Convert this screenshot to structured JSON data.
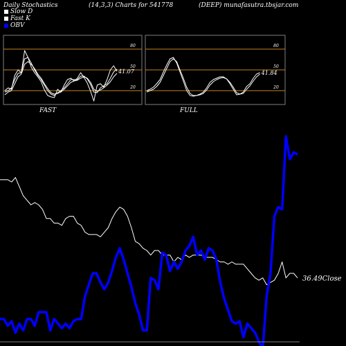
{
  "header": {
    "left": "Daily Stochastics",
    "middle": "(14,3,3) Charts for 541778",
    "right": "(DEEP) munafasutra.tbsjar.com"
  },
  "legend": [
    {
      "label": "Slow  D",
      "color": "#ffffff"
    },
    {
      "label": "Fast K",
      "color": "#ffffff"
    },
    {
      "label": "OBV",
      "color": "#0000ff"
    }
  ],
  "colors": {
    "background": "#000000",
    "panel_border": "#808080",
    "ref_lines": "#c8821e",
    "stoch_lines": "#ffffff",
    "obv": "#0000ff",
    "close": "#ffffff"
  },
  "chart_data": [
    {
      "type": "line",
      "title": "FAST",
      "ylim": [
        0,
        100
      ],
      "ticks": [
        "80",
        "50",
        "20"
      ],
      "ref_lines": [
        80,
        50,
        20
      ],
      "last_label": "41.07",
      "series": [
        {
          "values": [
            20,
            24,
            22,
            42,
            50,
            46,
            78,
            68,
            54,
            46,
            40,
            33,
            21,
            13,
            11,
            10,
            22,
            18,
            28,
            36,
            38,
            34,
            38,
            46,
            39,
            31,
            19,
            5,
            28,
            30,
            25,
            36,
            50,
            56,
            48
          ]
        },
        {
          "values": [
            18,
            20,
            24,
            36,
            45,
            46,
            66,
            68,
            60,
            50,
            42,
            36,
            28,
            20,
            15,
            13,
            17,
            20,
            24,
            30,
            36,
            36,
            36,
            41,
            41,
            37,
            29,
            18,
            17,
            24,
            27,
            30,
            38,
            47,
            51
          ]
        },
        {
          "values": [
            14,
            18,
            20,
            30,
            40,
            44,
            58,
            62,
            58,
            52,
            44,
            38,
            30,
            23,
            17,
            15,
            16,
            18,
            22,
            27,
            32,
            34,
            35,
            38,
            40,
            38,
            32,
            22,
            19,
            21,
            24,
            28,
            33,
            40,
            45
          ]
        }
      ]
    },
    {
      "type": "line",
      "title": "FULL",
      "ylim": [
        0,
        100
      ],
      "ticks": [
        "80",
        "50",
        "20"
      ],
      "ref_lines": [
        80,
        50,
        20
      ],
      "last_label": "41.84",
      "series": [
        {
          "values": [
            20,
            22,
            25,
            30,
            36,
            47,
            57,
            66,
            68,
            60,
            47,
            34,
            20,
            13,
            12,
            13,
            15,
            18,
            24,
            32,
            36,
            38,
            40,
            40,
            37,
            30,
            22,
            14,
            15,
            18,
            26,
            30,
            38,
            44,
            46
          ]
        },
        {
          "values": [
            18,
            20,
            22,
            26,
            32,
            42,
            52,
            62,
            66,
            62,
            50,
            38,
            25,
            16,
            13,
            13,
            14,
            16,
            21,
            28,
            33,
            36,
            38,
            39,
            37,
            32,
            25,
            17,
            15,
            16,
            22,
            27,
            34,
            40,
            44
          ]
        }
      ]
    },
    {
      "type": "line",
      "close_label": "36.49Close",
      "series": [
        {
          "name": "OBV",
          "values": [
            10,
            10,
            7,
            9,
            4,
            8,
            5,
            10,
            10,
            7,
            13,
            13,
            13,
            5,
            10,
            8,
            6,
            8,
            6,
            9,
            10,
            10,
            20,
            25,
            30,
            30,
            26,
            23,
            26,
            31,
            37,
            41,
            36,
            30,
            24,
            17,
            12,
            5,
            5,
            28,
            27,
            23,
            39,
            38,
            31,
            35,
            32,
            35,
            40,
            42,
            46,
            38,
            40,
            36,
            41,
            40,
            36,
            26,
            19,
            14,
            9,
            8,
            9,
            2,
            8,
            6,
            4,
            0,
            -3,
            20,
            30,
            55,
            59,
            58,
            90,
            80,
            83,
            82
          ]
        },
        {
          "name": "Close",
          "values": [
            71,
            71,
            71,
            70,
            72,
            68,
            64,
            62,
            60,
            61,
            60,
            58,
            54,
            54,
            52,
            52,
            51,
            54,
            55,
            55,
            52,
            51,
            48,
            47,
            47,
            47,
            46,
            48,
            50,
            54,
            57,
            59,
            58,
            55,
            50,
            44,
            43,
            41,
            40,
            38,
            40,
            40,
            38,
            38,
            38,
            35,
            37,
            36,
            38,
            37,
            38,
            38,
            38,
            37,
            37,
            37,
            36,
            35,
            35,
            34,
            35,
            34,
            34,
            34,
            32,
            30,
            28,
            27,
            28,
            25,
            26,
            27,
            30,
            35,
            28,
            30,
            30,
            28
          ]
        }
      ]
    }
  ]
}
